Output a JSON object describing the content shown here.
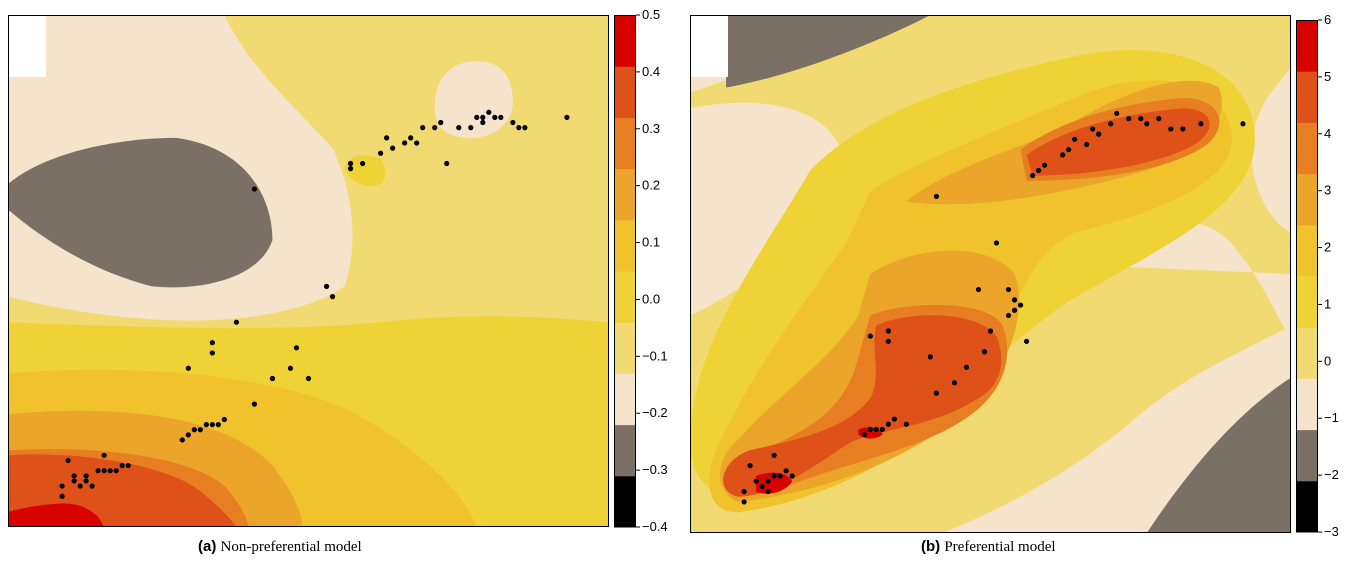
{
  "panels": [
    {
      "caption_label": "(a)",
      "caption_text": "Non-preferential model",
      "chart_data": {
        "type": "heatmap",
        "colorbar": {
          "ticks": [
            "0.5",
            "0.4",
            "0.3",
            "0.2",
            "0.1",
            "0.0",
            "−0.1",
            "−0.2",
            "−0.3",
            "−0.4"
          ],
          "range": [
            -0.4,
            0.5
          ],
          "colors": [
            "#000000",
            "#7a7065",
            "#f5e4cb",
            "#f2da73",
            "#efd236",
            "#f0c22c",
            "#eaa52a",
            "#e77e22",
            "#de5219",
            "#d90000"
          ]
        },
        "points_xy": [
          [
            0.09,
            0.92
          ],
          [
            0.09,
            0.94
          ],
          [
            0.11,
            0.9
          ],
          [
            0.11,
            0.91
          ],
          [
            0.13,
            0.91
          ],
          [
            0.12,
            0.92
          ],
          [
            0.15,
            0.89
          ],
          [
            0.16,
            0.89
          ],
          [
            0.17,
            0.89
          ],
          [
            0.18,
            0.89
          ],
          [
            0.19,
            0.88
          ],
          [
            0.2,
            0.88
          ],
          [
            0.16,
            0.86
          ],
          [
            0.1,
            0.87
          ],
          [
            0.13,
            0.9
          ],
          [
            0.14,
            0.92
          ],
          [
            0.29,
            0.83
          ],
          [
            0.3,
            0.82
          ],
          [
            0.31,
            0.81
          ],
          [
            0.32,
            0.81
          ],
          [
            0.33,
            0.8
          ],
          [
            0.34,
            0.8
          ],
          [
            0.35,
            0.8
          ],
          [
            0.36,
            0.79
          ],
          [
            0.41,
            0.76
          ],
          [
            0.44,
            0.71
          ],
          [
            0.44,
            0.71
          ],
          [
            0.47,
            0.69
          ],
          [
            0.5,
            0.71
          ],
          [
            0.34,
            0.64
          ],
          [
            0.34,
            0.66
          ],
          [
            0.3,
            0.69
          ],
          [
            0.38,
            0.6
          ],
          [
            0.48,
            0.65
          ],
          [
            0.53,
            0.53
          ],
          [
            0.54,
            0.55
          ],
          [
            0.41,
            0.34
          ],
          [
            0.57,
            0.29
          ],
          [
            0.57,
            0.3
          ],
          [
            0.59,
            0.29
          ],
          [
            0.62,
            0.27
          ],
          [
            0.63,
            0.24
          ],
          [
            0.64,
            0.26
          ],
          [
            0.66,
            0.25
          ],
          [
            0.67,
            0.24
          ],
          [
            0.68,
            0.25
          ],
          [
            0.69,
            0.22
          ],
          [
            0.71,
            0.22
          ],
          [
            0.72,
            0.21
          ],
          [
            0.73,
            0.29
          ],
          [
            0.75,
            0.22
          ],
          [
            0.77,
            0.22
          ],
          [
            0.78,
            0.2
          ],
          [
            0.79,
            0.2
          ],
          [
            0.79,
            0.21
          ],
          [
            0.8,
            0.19
          ],
          [
            0.81,
            0.2
          ],
          [
            0.82,
            0.2
          ],
          [
            0.84,
            0.21
          ],
          [
            0.85,
            0.22
          ],
          [
            0.86,
            0.22
          ],
          [
            0.93,
            0.2
          ]
        ]
      }
    },
    {
      "caption_label": "(b)",
      "caption_text": "Preferential model",
      "chart_data": {
        "type": "heatmap",
        "colorbar": {
          "ticks": [
            "6",
            "5",
            "4",
            "3",
            "2",
            "1",
            "0",
            "−1",
            "−2",
            "−3"
          ],
          "range": [
            -3,
            6
          ],
          "colors": [
            "#000000",
            "#7a7065",
            "#f5e4cb",
            "#f2da73",
            "#efd236",
            "#f0c22c",
            "#eaa52a",
            "#e77e22",
            "#de5219",
            "#d90000"
          ]
        },
        "points_xy": [
          [
            0.09,
            0.92
          ],
          [
            0.09,
            0.94
          ],
          [
            0.1,
            0.87
          ],
          [
            0.11,
            0.9
          ],
          [
            0.12,
            0.91
          ],
          [
            0.13,
            0.92
          ],
          [
            0.13,
            0.9
          ],
          [
            0.14,
            0.89
          ],
          [
            0.15,
            0.89
          ],
          [
            0.16,
            0.88
          ],
          [
            0.17,
            0.89
          ],
          [
            0.14,
            0.85
          ],
          [
            0.29,
            0.81
          ],
          [
            0.3,
            0.8
          ],
          [
            0.31,
            0.8
          ],
          [
            0.32,
            0.8
          ],
          [
            0.33,
            0.79
          ],
          [
            0.34,
            0.78
          ],
          [
            0.36,
            0.79
          ],
          [
            0.44,
            0.71
          ],
          [
            0.46,
            0.68
          ],
          [
            0.49,
            0.65
          ],
          [
            0.49,
            0.65
          ],
          [
            0.5,
            0.61
          ],
          [
            0.53,
            0.58
          ],
          [
            0.56,
            0.63
          ],
          [
            0.41,
            0.73
          ],
          [
            0.3,
            0.62
          ],
          [
            0.33,
            0.61
          ],
          [
            0.33,
            0.63
          ],
          [
            0.48,
            0.53
          ],
          [
            0.55,
            0.56
          ],
          [
            0.4,
            0.66
          ],
          [
            0.53,
            0.53
          ],
          [
            0.54,
            0.57
          ],
          [
            0.51,
            0.44
          ],
          [
            0.54,
            0.55
          ],
          [
            0.41,
            0.35
          ],
          [
            0.57,
            0.31
          ],
          [
            0.58,
            0.3
          ],
          [
            0.59,
            0.29
          ],
          [
            0.62,
            0.27
          ],
          [
            0.63,
            0.26
          ],
          [
            0.64,
            0.24
          ],
          [
            0.66,
            0.25
          ],
          [
            0.67,
            0.22
          ],
          [
            0.68,
            0.23
          ],
          [
            0.7,
            0.21
          ],
          [
            0.71,
            0.19
          ],
          [
            0.73,
            0.2
          ],
          [
            0.75,
            0.2
          ],
          [
            0.76,
            0.21
          ],
          [
            0.78,
            0.2
          ],
          [
            0.8,
            0.22
          ],
          [
            0.82,
            0.22
          ],
          [
            0.85,
            0.21
          ],
          [
            0.92,
            0.21
          ]
        ]
      }
    }
  ]
}
